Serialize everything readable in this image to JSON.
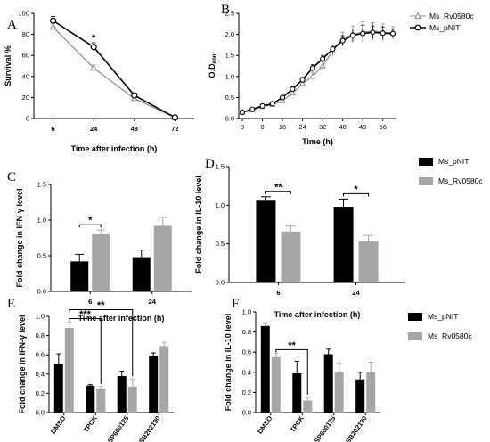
{
  "chart_data": [
    {
      "panel": "A",
      "type": "line",
      "xlabel": "Time after infection (h)",
      "ylabel": "Survival %",
      "categories": [
        "6",
        "24",
        "48",
        "72"
      ],
      "ylim": [
        0,
        100
      ],
      "yticks": [
        0,
        20,
        40,
        60,
        80,
        100
      ],
      "series": [
        {
          "name": "Ms_Rv0580c",
          "values": [
            87,
            48,
            19,
            1
          ],
          "err": [
            3,
            3,
            2,
            1
          ],
          "marker": "triangle",
          "color": "#8c8c8c"
        },
        {
          "name": "Ms_pNIT",
          "values": [
            93,
            68,
            22,
            1
          ],
          "err": [
            4,
            4,
            2,
            1
          ],
          "marker": "circle",
          "color": "#000000"
        }
      ],
      "annotations": [
        {
          "category": "24",
          "text": "*"
        }
      ]
    },
    {
      "panel": "B",
      "type": "line",
      "xlabel": "Time (h)",
      "ylabel": "O.D600",
      "xlim": [
        0,
        60
      ],
      "xticks": [
        0,
        8,
        16,
        24,
        32,
        40,
        48,
        56
      ],
      "ylim": [
        0,
        2.5
      ],
      "yticks": [
        0.0,
        0.5,
        1.0,
        1.5,
        2.0,
        2.5
      ],
      "x": [
        0,
        4,
        8,
        12,
        16,
        20,
        24,
        28,
        32,
        36,
        40,
        44,
        48,
        52,
        56,
        60
      ],
      "series": [
        {
          "name": "Ms_Rv0580c",
          "values": [
            0.14,
            0.2,
            0.28,
            0.33,
            0.42,
            0.6,
            0.83,
            1.0,
            1.25,
            1.6,
            1.9,
            2.0,
            2.05,
            2.08,
            2.05,
            2.03
          ],
          "err": [
            0.02,
            0.02,
            0.03,
            0.03,
            0.05,
            0.05,
            0.08,
            0.1,
            0.1,
            0.12,
            0.15,
            0.2,
            0.25,
            0.2,
            0.2,
            0.15
          ],
          "marker": "triangle",
          "color": "#8c8c8c"
        },
        {
          "name": "Ms_pNIT",
          "values": [
            0.15,
            0.22,
            0.3,
            0.35,
            0.5,
            0.7,
            0.92,
            1.2,
            1.42,
            1.65,
            1.85,
            1.98,
            2.02,
            2.05,
            2.03,
            2.02
          ],
          "err": [
            0.02,
            0.02,
            0.03,
            0.03,
            0.04,
            0.05,
            0.06,
            0.08,
            0.08,
            0.1,
            0.12,
            0.15,
            0.2,
            0.15,
            0.15,
            0.1
          ],
          "marker": "circle",
          "color": "#000000"
        }
      ],
      "legend": [
        "Ms_Rv0580c",
        "Ms_pNIT"
      ],
      "legend_placement": "top-right"
    },
    {
      "panel": "C",
      "type": "bar",
      "xlabel": "Time after infection (h)",
      "ylabel": "Fold change in IFN-γ level",
      "categories": [
        "6",
        "24"
      ],
      "ylim": [
        0,
        1.5
      ],
      "yticks": [
        0.0,
        0.5,
        1.0,
        1.5
      ],
      "series": [
        {
          "name": "Ms_pNIT",
          "values": [
            0.42,
            0.48
          ],
          "err": [
            0.1,
            0.1
          ],
          "color": "#000000"
        },
        {
          "name": "Ms_Rv0580c",
          "values": [
            0.8,
            0.92
          ],
          "err": [
            0.06,
            0.12
          ],
          "color": "#a6a6a6"
        }
      ],
      "annotations": [
        {
          "category": "6",
          "text": "*"
        }
      ]
    },
    {
      "panel": "D",
      "type": "bar",
      "xlabel": "Time after infection (h)",
      "ylabel": "Fold change in IL-10 level",
      "categories": [
        "6",
        "24"
      ],
      "ylim": [
        0,
        1.5
      ],
      "yticks": [
        0.0,
        0.5,
        1.0,
        1.5
      ],
      "series": [
        {
          "name": "Ms_pNIT",
          "values": [
            1.07,
            0.98
          ],
          "err": [
            0.04,
            0.1
          ],
          "color": "#000000"
        },
        {
          "name": "Ms_Rv0580c",
          "values": [
            0.66,
            0.53
          ],
          "err": [
            0.07,
            0.08
          ],
          "color": "#a6a6a6"
        }
      ],
      "annotations": [
        {
          "category": "6",
          "text": "**"
        },
        {
          "category": "24",
          "text": "*"
        }
      ],
      "legend": [
        "Ms_pNIT",
        "Ms_Rv0580c"
      ],
      "legend_placement": "right"
    },
    {
      "panel": "E",
      "type": "bar",
      "ylabel": "Fold change in IFN-γ level",
      "categories": [
        "DMSO",
        "TPCK",
        "SP600125",
        "SB202190"
      ],
      "ylim": [
        0,
        1.0
      ],
      "yticks": [
        0.0,
        0.2,
        0.4,
        0.6,
        0.8,
        1.0
      ],
      "series": [
        {
          "name": "Ms_pNIT",
          "values": [
            0.51,
            0.28,
            0.38,
            0.59
          ],
          "err": [
            0.1,
            0.01,
            0.05,
            0.03
          ],
          "color": "#000000"
        },
        {
          "name": "Ms_Rv0580c",
          "values": [
            0.88,
            0.25,
            0.27,
            0.69
          ],
          "err": [
            0.06,
            0.02,
            0.08,
            0.04
          ],
          "color": "#a6a6a6"
        }
      ],
      "annotations": [
        {
          "from": "DMSO",
          "to": "TPCK",
          "text": "***"
        },
        {
          "from": "DMSO",
          "to": "SP600125",
          "text": "**"
        }
      ]
    },
    {
      "panel": "F",
      "type": "bar",
      "ylabel": "Fold change in IL-10 level",
      "categories": [
        "DMSO",
        "TPCK",
        "SP600125",
        "SB202190"
      ],
      "ylim": [
        0,
        1.0
      ],
      "yticks": [
        0.0,
        0.2,
        0.4,
        0.6,
        0.8,
        1.0
      ],
      "series": [
        {
          "name": "Ms_pNIT",
          "values": [
            0.86,
            0.39,
            0.58,
            0.33
          ],
          "err": [
            0.03,
            0.12,
            0.05,
            0.07
          ],
          "color": "#000000"
        },
        {
          "name": "Ms_Rv0580c",
          "values": [
            0.55,
            0.12,
            0.4,
            0.4
          ],
          "err": [
            0.04,
            0.03,
            0.09,
            0.1
          ],
          "color": "#a6a6a6"
        }
      ],
      "annotations": [
        {
          "from": "DMSO",
          "to": "TPCK",
          "text": "**"
        }
      ],
      "legend": [
        "Ms_pNIT",
        "Ms_Rv0580c"
      ],
      "legend_placement": "right"
    }
  ]
}
